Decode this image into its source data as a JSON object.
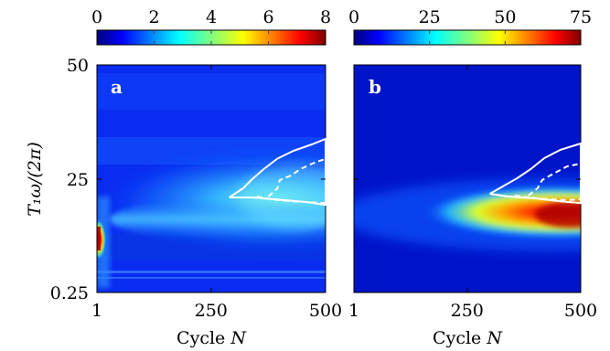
{
  "chart_data": [
    {
      "type": "heatmap",
      "panel_label": "a",
      "colorbar": {
        "ticks": [
          "0",
          "2",
          "4",
          "6",
          "8"
        ],
        "range": [
          0,
          8
        ],
        "colormap": "jet"
      },
      "x_ticks": [
        "1",
        "250",
        "500"
      ],
      "x_range": [
        1,
        500
      ],
      "xlabel": "Cycle N",
      "y_ticks": [
        "0.25",
        "25",
        "50"
      ],
      "y_range": [
        0.25,
        50
      ],
      "ylabel": "T₁ω/(2π)",
      "features": [
        {
          "kind": "background_band",
          "y": 22,
          "value": 3.2
        },
        {
          "kind": "hotspot",
          "x": 1,
          "y": 19.5,
          "value": 8
        },
        {
          "kind": "contour_solid",
          "points": [
            [
              290,
              21
            ],
            [
              320,
              23
            ],
            [
              340,
              25
            ],
            [
              365,
              27.2
            ],
            [
              395,
              29.5
            ],
            [
              430,
              31.2
            ],
            [
              470,
              32.6
            ],
            [
              500,
              33.8
            ],
            [
              500,
              19.4
            ],
            [
              460,
              20
            ],
            [
              400,
              20.5
            ],
            [
              340,
              21
            ],
            [
              290,
              21
            ]
          ]
        },
        {
          "kind": "contour_dashed",
          "points": [
            [
              375,
              21.2
            ],
            [
              395,
              23
            ],
            [
              400,
              24.8
            ],
            [
              425,
              25.8
            ],
            [
              445,
              27.2
            ],
            [
              480,
              28.8
            ],
            [
              500,
              29.4
            ]
          ]
        },
        {
          "kind": "contour_dashed",
          "points": [
            [
              350,
              21.2
            ],
            [
              380,
              20.6
            ],
            [
              420,
              20.2
            ],
            [
              460,
              20
            ],
            [
              500,
              19.8
            ]
          ]
        }
      ]
    },
    {
      "type": "heatmap",
      "panel_label": "b",
      "colorbar": {
        "ticks": [
          "0",
          "25",
          "50",
          "75"
        ],
        "range": [
          0,
          75
        ],
        "colormap": "jet"
      },
      "x_ticks": [
        "1",
        "250",
        "500"
      ],
      "x_range": [
        1,
        500
      ],
      "xlabel": "Cycle N",
      "y_ticks": [],
      "y_range": [
        0.25,
        50
      ],
      "ylabel": "",
      "features": [
        {
          "kind": "hotspot",
          "x": 500,
          "y": 21.5,
          "value": 75
        },
        {
          "kind": "contour_solid",
          "points": [
            [
              300,
              21.8
            ],
            [
              330,
              23.5
            ],
            [
              360,
              25.2
            ],
            [
              390,
              27.2
            ],
            [
              420,
              29.6
            ],
            [
              455,
              31.4
            ],
            [
              500,
              32.8
            ],
            [
              500,
              19.8
            ],
            [
              450,
              20.2
            ],
            [
              400,
              20.8
            ],
            [
              340,
              21.2
            ],
            [
              300,
              21.8
            ]
          ]
        },
        {
          "kind": "contour_dashed",
          "points": [
            [
              385,
              21.4
            ],
            [
              405,
              23
            ],
            [
              415,
              24.8
            ],
            [
              440,
              26.2
            ],
            [
              470,
              27.8
            ],
            [
              500,
              28.4
            ]
          ]
        },
        {
          "kind": "contour_dashed",
          "points": [
            [
              355,
              21.4
            ],
            [
              390,
              20.9
            ],
            [
              430,
              20.6
            ],
            [
              470,
              20.4
            ],
            [
              500,
              20.6
            ]
          ]
        }
      ]
    }
  ]
}
